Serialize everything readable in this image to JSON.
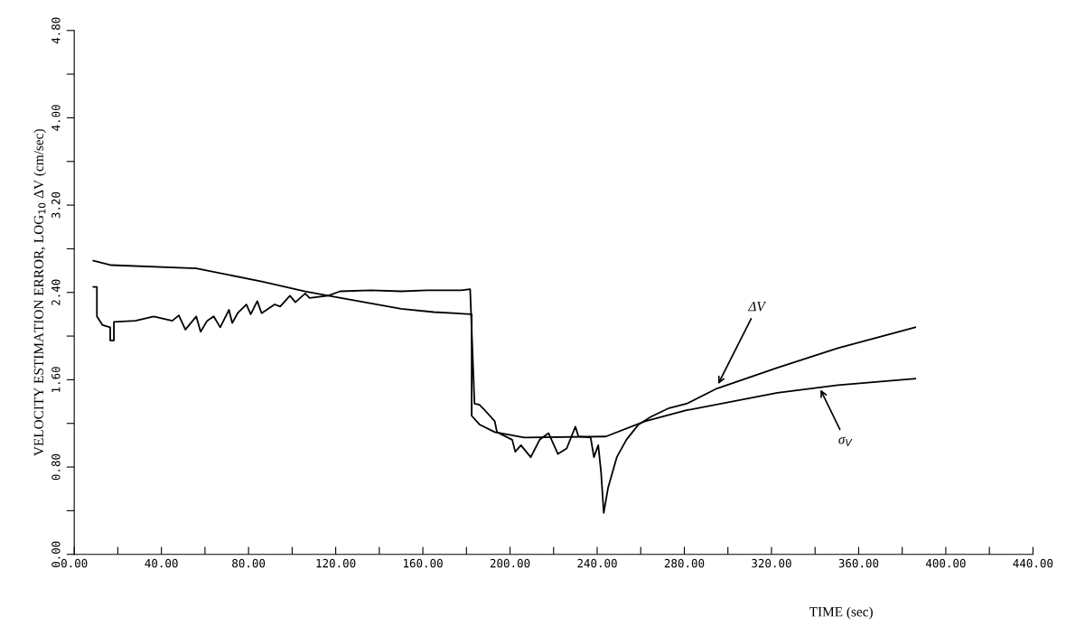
{
  "chart_data": {
    "type": "line",
    "xlabel": "TIME (sec)",
    "ylabel": "VELOCITY ESTIMATION ERROR, LOG$_{10}$ ΔV (cm/sec)",
    "xlim": [
      0,
      440
    ],
    "ylim": [
      0,
      4.8
    ],
    "xticks": [
      {
        "value": 0,
        "label": "0.00"
      },
      {
        "value": 20,
        "label": null
      },
      {
        "value": 40,
        "label": "40.00"
      },
      {
        "value": 60,
        "label": null
      },
      {
        "value": 80,
        "label": "80.00"
      },
      {
        "value": 100,
        "label": null
      },
      {
        "value": 120,
        "label": "120.00"
      },
      {
        "value": 140,
        "label": null
      },
      {
        "value": 160,
        "label": "160.00"
      },
      {
        "value": 180,
        "label": null
      },
      {
        "value": 200,
        "label": "200.00"
      },
      {
        "value": 220,
        "label": null
      },
      {
        "value": 240,
        "label": "240.00"
      },
      {
        "value": 260,
        "label": null
      },
      {
        "value": 280,
        "label": "280.00"
      },
      {
        "value": 300,
        "label": null
      },
      {
        "value": 320,
        "label": "320.00"
      },
      {
        "value": 340,
        "label": null
      },
      {
        "value": 360,
        "label": "360.00"
      },
      {
        "value": 380,
        "label": null
      },
      {
        "value": 400,
        "label": "400.00"
      },
      {
        "value": 420,
        "label": null
      },
      {
        "value": 440,
        "label": "440.00"
      }
    ],
    "yticks": [
      {
        "value": 0,
        "label": "0.00"
      },
      {
        "value": 0.4,
        "label": null
      },
      {
        "value": 0.8,
        "label": "0.80"
      },
      {
        "value": 1.2,
        "label": null
      },
      {
        "value": 1.6,
        "label": "1.60"
      },
      {
        "value": 2.0,
        "label": null
      },
      {
        "value": 2.4,
        "label": "2.40"
      },
      {
        "value": 2.8,
        "label": null
      },
      {
        "value": 3.2,
        "label": "3.20"
      },
      {
        "value": 3.6,
        "label": null
      },
      {
        "value": 4.0,
        "label": "4.00"
      },
      {
        "value": 4.4,
        "label": null
      },
      {
        "value": 4.8,
        "label": "4.80"
      }
    ],
    "grid": false,
    "marker": "none",
    "line_style": "solid",
    "series": [
      {
        "color": "#000000",
        "x": [
          8.8,
          10.4,
          10.4,
          13,
          16.5,
          16.5,
          18.2,
          18.2,
          28,
          36.5,
          45,
          48,
          51,
          56,
          58,
          61,
          64,
          67,
          71,
          72.5,
          75,
          79,
          81,
          84,
          86,
          92,
          94.5,
          99,
          101.5,
          106,
          108,
          116.5,
          122,
          136,
          150,
          162,
          177.5,
          181.7,
          183.7,
          186,
          188,
          193,
          194,
          201,
          202.4,
          205,
          209.5,
          213.6,
          217.7,
          222,
          226,
          230,
          231.4,
          237,
          238.5,
          240.5,
          241.8,
          243,
          245,
          249,
          253.4,
          259,
          264.6,
          273,
          281,
          295,
          322.7,
          350.5,
          386
        ],
        "values": [
          2.45,
          2.45,
          2.18,
          2.1,
          2.08,
          1.96,
          1.96,
          2.13,
          2.14,
          2.18,
          2.14,
          2.19,
          2.06,
          2.18,
          2.04,
          2.14,
          2.18,
          2.08,
          2.24,
          2.12,
          2.21,
          2.29,
          2.2,
          2.32,
          2.21,
          2.29,
          2.27,
          2.37,
          2.31,
          2.39,
          2.35,
          2.37,
          2.41,
          2.42,
          2.41,
          2.42,
          2.42,
          2.43,
          1.38,
          1.37,
          1.33,
          1.22,
          1.12,
          1.05,
          0.94,
          1.0,
          0.89,
          1.05,
          1.11,
          0.92,
          0.97,
          1.17,
          1.08,
          1.07,
          0.89,
          1.0,
          0.75,
          0.38,
          0.61,
          0.89,
          1.05,
          1.19,
          1.26,
          1.34,
          1.38,
          1.52,
          1.71,
          1.89,
          2.08
        ]
      },
      {
        "color": "#000000",
        "x": [
          8.8,
          17,
          56,
          86,
          106,
          119.5,
          150,
          165,
          182.4,
          182.4,
          186,
          193,
          206.5,
          244,
          262,
          281,
          322.7,
          350.5,
          386
        ],
        "values": [
          2.69,
          2.65,
          2.62,
          2.5,
          2.41,
          2.36,
          2.25,
          2.22,
          2.2,
          1.27,
          1.19,
          1.12,
          1.07,
          1.08,
          1.22,
          1.32,
          1.48,
          1.55,
          1.61
        ]
      }
    ],
    "annotations": [
      {
        "text": "ΔV",
        "x": 295,
        "y": 1.54
      },
      {
        "text": "σ$_{V}$",
        "x": 342,
        "y": 1.53
      }
    ]
  }
}
